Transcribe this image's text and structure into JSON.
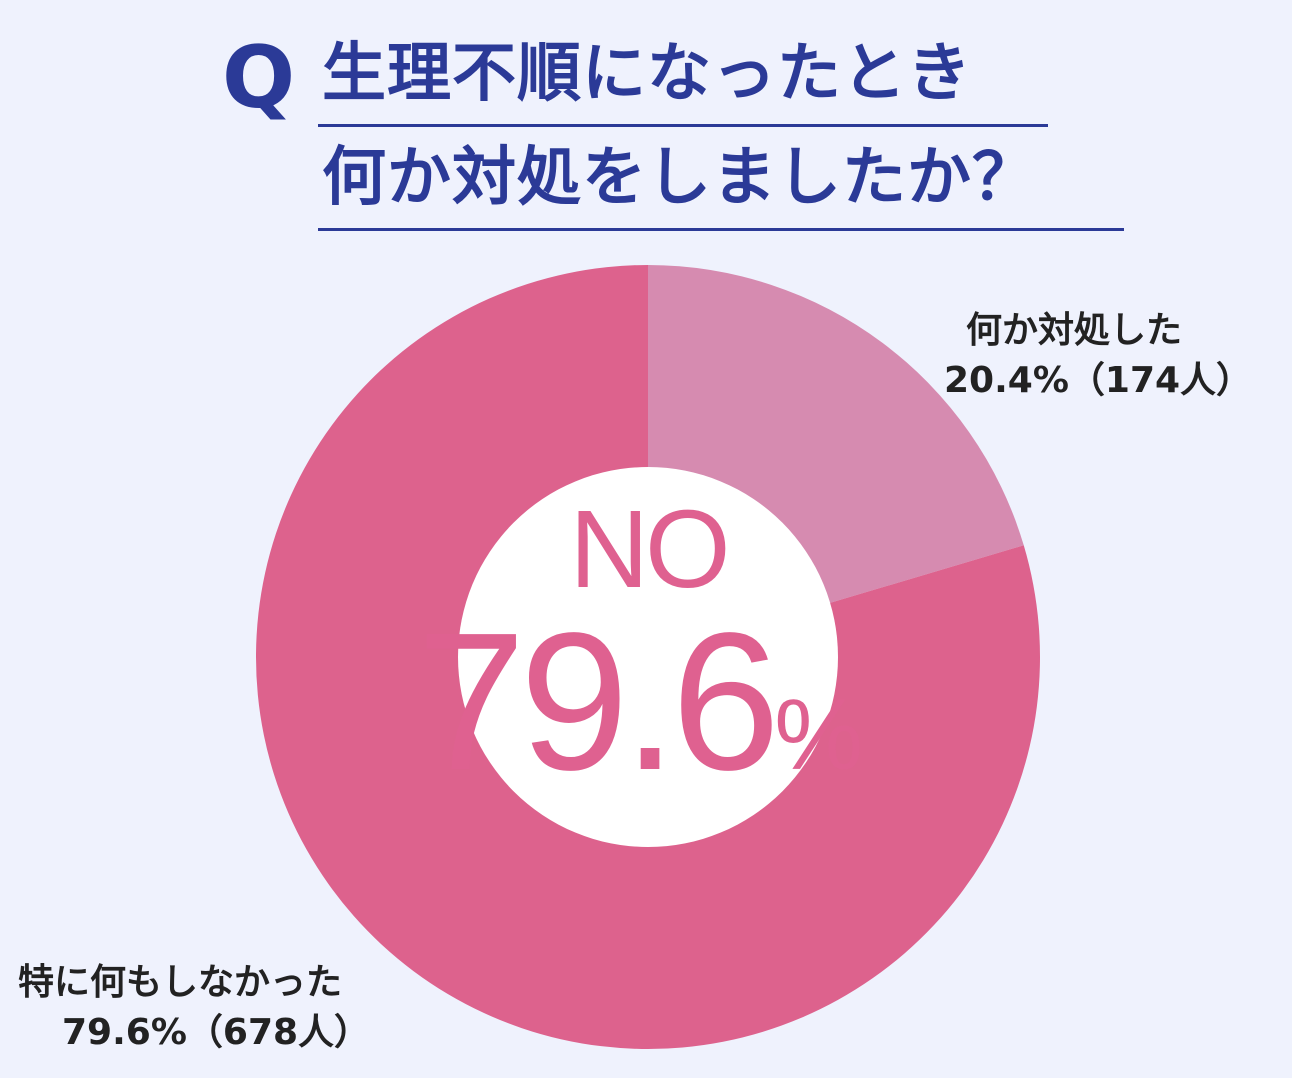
{
  "question": {
    "mark": "Q",
    "line1": "生理不順になったとき",
    "line2": "何か対処をしましたか？"
  },
  "center": {
    "label": "NO",
    "value": "79.6",
    "unit": "%"
  },
  "colors": {
    "background": "#eff2fd",
    "title": "#2b3a97",
    "slice_no": "#dd628d",
    "slice_yes": "#d68bb0",
    "center_text": "#df6190"
  },
  "chart_data": {
    "type": "pie",
    "style": "donut",
    "categories": [
      "何か対処した",
      "特に何もしなかった"
    ],
    "values": [
      20.4,
      79.6
    ],
    "counts": [
      174,
      678
    ],
    "labels": [
      {
        "name": "何か対処した",
        "detail": "20.4%（174人）"
      },
      {
        "name": "特に何もしなかった",
        "detail": "79.6%（678人）"
      }
    ]
  }
}
